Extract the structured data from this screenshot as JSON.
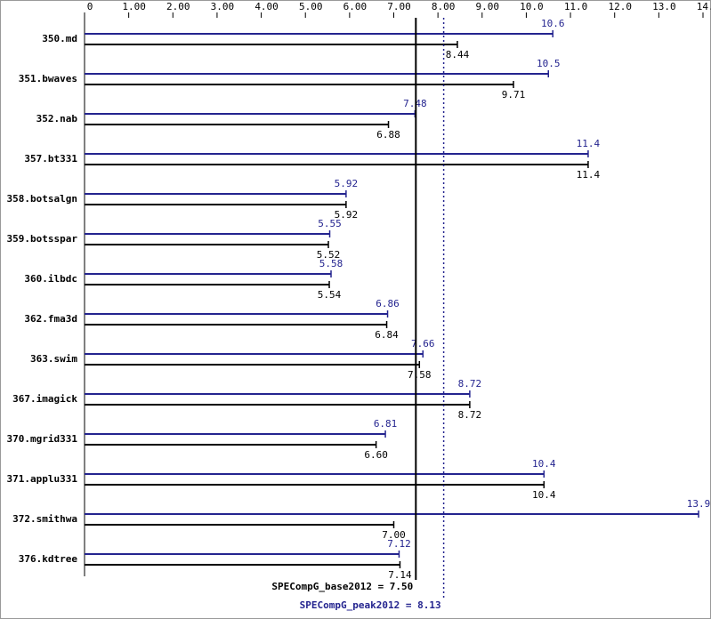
{
  "chart_data": {
    "type": "bar",
    "orientation": "horizontal",
    "categories": [
      "350.md",
      "351.bwaves",
      "352.nab",
      "357.bt331",
      "358.botsalgn",
      "359.botsspar",
      "360.ilbdc",
      "362.fma3d",
      "363.swim",
      "367.imagick",
      "370.mgrid331",
      "371.applu331",
      "372.smithwa",
      "376.kdtree"
    ],
    "series": [
      {
        "color": "#24248f",
        "values": [
          10.6,
          10.5,
          7.48,
          11.4,
          5.92,
          5.55,
          5.58,
          6.86,
          7.66,
          8.72,
          6.81,
          10.4,
          13.9,
          7.12
        ],
        "value_labels": [
          "10.6",
          "10.5",
          "7.48",
          "11.4",
          "5.92",
          "5.55",
          "5.58",
          "6.86",
          "7.66",
          "8.72",
          "6.81",
          "10.4",
          "13.9",
          "7.12"
        ]
      },
      {
        "color": "#000000",
        "values": [
          8.44,
          9.71,
          6.88,
          11.4,
          5.92,
          5.52,
          5.54,
          6.84,
          7.58,
          8.72,
          6.6,
          10.4,
          7.0,
          7.14
        ],
        "value_labels": [
          "8.44",
          "9.71",
          "6.88",
          "11.4",
          "5.92",
          "5.52",
          "5.54",
          "6.84",
          "7.58",
          "8.72",
          "6.60",
          "10.4",
          "7.00",
          "7.14"
        ]
      }
    ],
    "xlim": [
      0,
      14
    ],
    "xticks": [
      0,
      {
        "value": 1,
        "label": "1.00"
      },
      {
        "value": 2,
        "label": "2.00"
      },
      {
        "value": 3,
        "label": "3.00"
      },
      {
        "value": 4,
        "label": "4.00"
      },
      {
        "value": 5,
        "label": "5.00"
      },
      {
        "value": 6,
        "label": "6.00"
      },
      {
        "value": 7,
        "label": "7.00"
      },
      {
        "value": 8,
        "label": "8.00"
      },
      {
        "value": 9,
        "label": "9.00"
      },
      {
        "value": 10,
        "label": "10.0"
      },
      {
        "value": 11,
        "label": "11.0"
      },
      {
        "value": 12,
        "label": "12.0"
      },
      {
        "value": 13,
        "label": "13.0"
      },
      {
        "value": 14,
        "label": "14.0"
      }
    ],
    "reference_lines": [
      {
        "value": 7.5,
        "label": "SPECompG_base2012 = 7.50",
        "color": "#000000",
        "dashed": false
      },
      {
        "value": 8.13,
        "label": "SPECompG_peak2012 = 8.13",
        "color": "#24248f",
        "dashed": true
      }
    ]
  }
}
